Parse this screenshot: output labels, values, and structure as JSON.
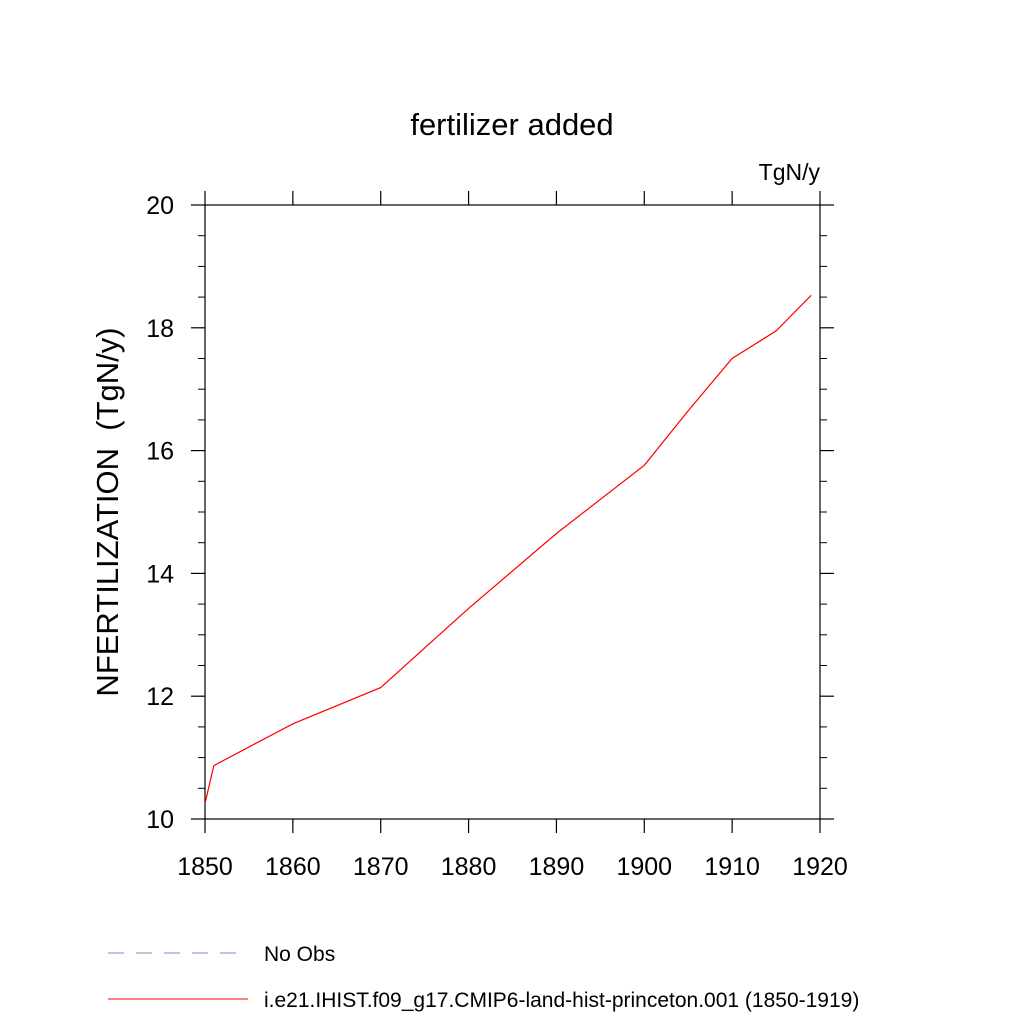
{
  "chart_data": {
    "type": "line",
    "title": "fertilizer added",
    "units_label": "TgN/y",
    "xlabel": "",
    "ylabel": "NFERTILIZATION  (TgN/y)",
    "xlim": [
      1850,
      1920
    ],
    "ylim": [
      10,
      20
    ],
    "x_ticks": [
      1850,
      1860,
      1870,
      1880,
      1890,
      1900,
      1910,
      1920
    ],
    "y_ticks": [
      10,
      12,
      14,
      16,
      18,
      20
    ],
    "grid": false,
    "legend_position": "bottom-left",
    "series": [
      {
        "name": "i.e21.IHIST.f09_g17.CMIP6-land-hist-princeton.001 (1850-1919)",
        "color": "#ff0000",
        "style": "solid",
        "x": [
          1850,
          1851,
          1860,
          1870,
          1880,
          1890,
          1900,
          1905,
          1910,
          1915,
          1919
        ],
        "y": [
          10.25,
          10.87,
          11.55,
          12.14,
          13.43,
          14.65,
          15.76,
          16.65,
          17.5,
          17.95,
          18.53
        ]
      },
      {
        "name": "No Obs",
        "color": "#8a86c8",
        "style": "dashed",
        "x": [],
        "y": []
      }
    ]
  }
}
